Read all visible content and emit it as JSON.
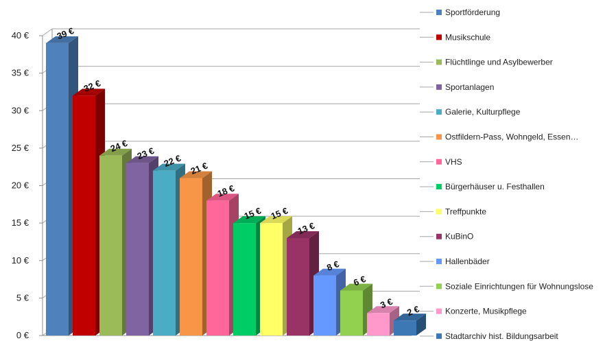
{
  "chart_data": {
    "type": "bar",
    "title": "",
    "xlabel": "",
    "ylabel": "",
    "ylim": [
      0,
      40
    ],
    "y_ticks": [
      {
        "value": 0,
        "label": "0 €"
      },
      {
        "value": 5,
        "label": "5 €"
      },
      {
        "value": 10,
        "label": "10 €"
      },
      {
        "value": 15,
        "label": "15 €"
      },
      {
        "value": 20,
        "label": "20 €"
      },
      {
        "value": 25,
        "label": "25 €"
      },
      {
        "value": 30,
        "label": "30 €"
      },
      {
        "value": 35,
        "label": "35 €"
      },
      {
        "value": 40,
        "label": "40 €"
      }
    ],
    "grid": true,
    "legend_position": "right",
    "style": "3d-column",
    "categories": [
      {
        "name": "Sportförderung",
        "value": 39,
        "label": "39 €",
        "color": "#4F81BD"
      },
      {
        "name": "Musikschule",
        "value": 32,
        "label": "32 €",
        "color": "#C00000"
      },
      {
        "name": "Flüchtlinge und Asylbewerber",
        "value": 24,
        "label": "24 €",
        "color": "#9BBB59"
      },
      {
        "name": "Sportanlagen",
        "value": 23,
        "label": "23 €",
        "color": "#8064A2"
      },
      {
        "name": "Galerie, Kulturpflege",
        "value": 22,
        "label": "22 €",
        "color": "#4BACC6"
      },
      {
        "name": "Ostfildern-Pass, Wohngeld, Essen…",
        "value": 21,
        "label": "21 €",
        "color": "#F79646"
      },
      {
        "name": "VHS",
        "value": 18,
        "label": "18 €",
        "color": "#FF6699"
      },
      {
        "name": "Bürgerhäuser u. Festhallen",
        "value": 15,
        "label": "15 €",
        "color": "#00CC66"
      },
      {
        "name": "Treffpunkte",
        "value": 15,
        "label": "15 €",
        "color": "#FFFF66"
      },
      {
        "name": "KuBinO",
        "value": 13,
        "label": "13 €",
        "color": "#993366"
      },
      {
        "name": "Hallenbäder",
        "value": 8,
        "label": "8 €",
        "color": "#6699FF"
      },
      {
        "name": "Soziale Einrichtungen für Wohnungslose",
        "value": 6,
        "label": "6 €",
        "color": "#92D050"
      },
      {
        "name": "Konzerte, Musikpflege",
        "value": 3,
        "label": "3 €",
        "color": "#FF99CC"
      },
      {
        "name": "Stadtarchiv hist. Bildungsarbeit",
        "value": 2,
        "label": "2 €",
        "color": "#3C78B4"
      }
    ]
  }
}
